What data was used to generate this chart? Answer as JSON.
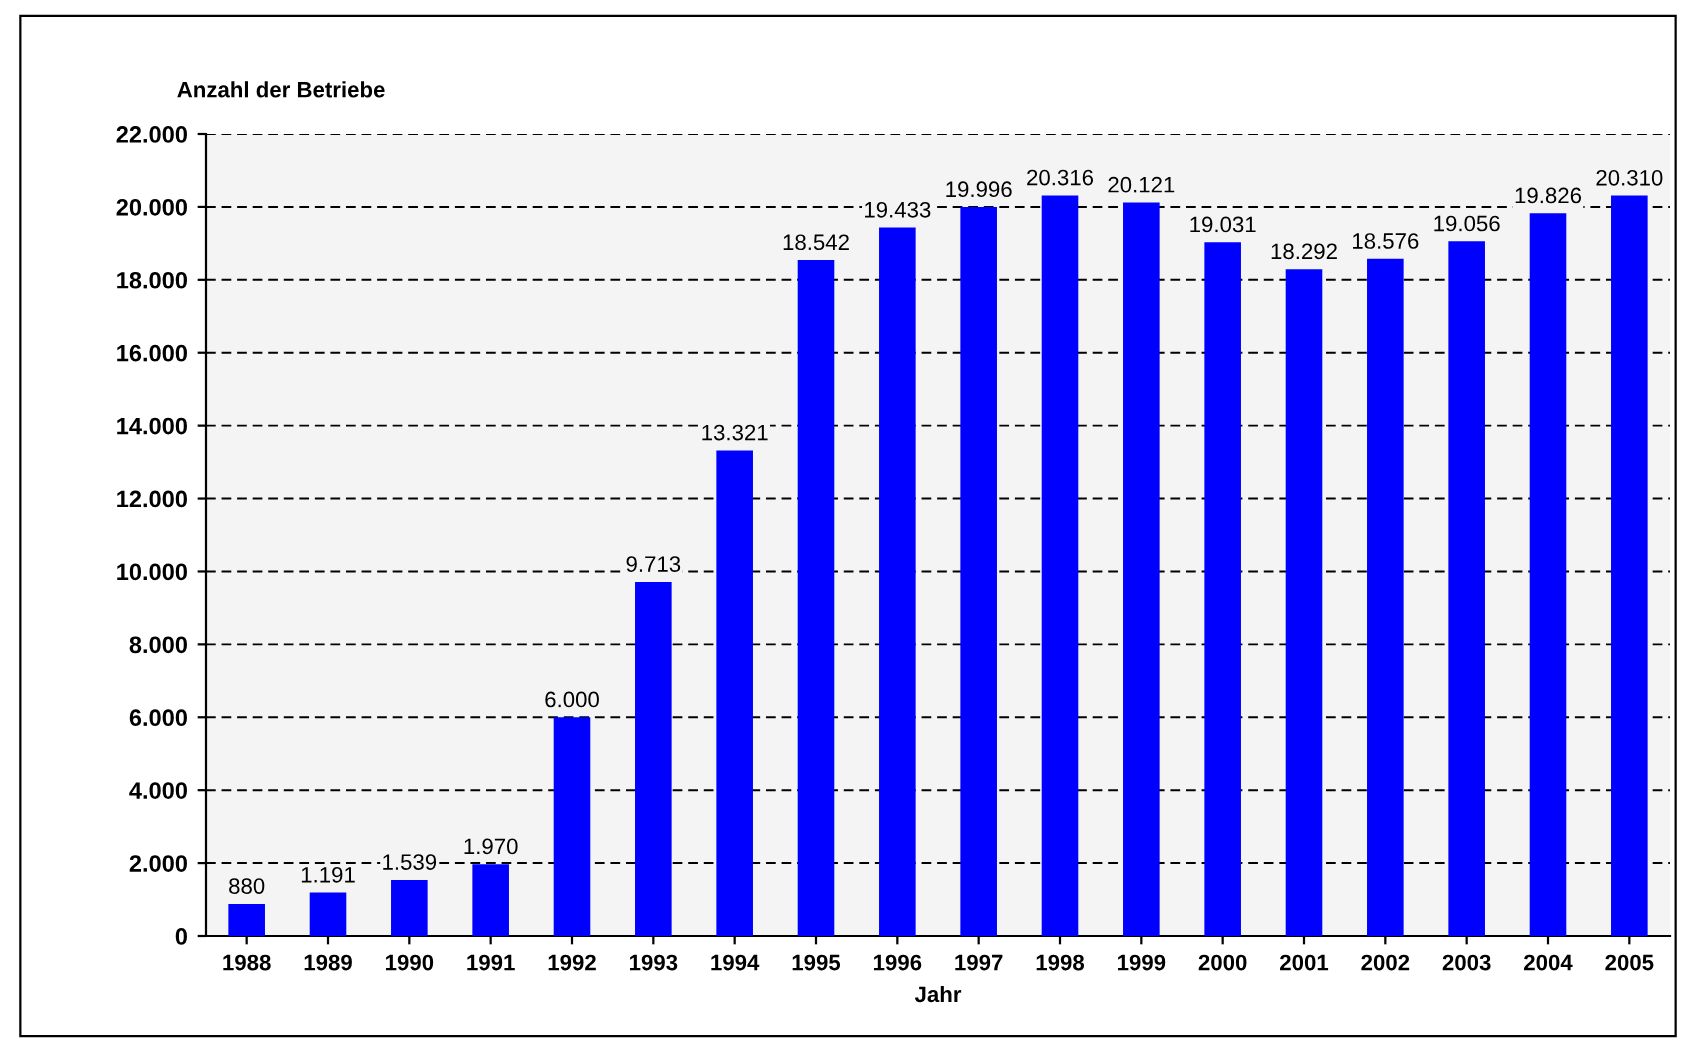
{
  "chart_data": {
    "type": "bar",
    "ylabel": "Anzahl der Betriebe",
    "xlabel": "Jahr",
    "categories": [
      "1988",
      "1989",
      "1990",
      "1991",
      "1992",
      "1993",
      "1994",
      "1995",
      "1996",
      "1997",
      "1998",
      "1999",
      "2000",
      "2001",
      "2002",
      "2003",
      "2004",
      "2005"
    ],
    "values": [
      880,
      1191,
      1539,
      1970,
      6000,
      9713,
      13321,
      18542,
      19433,
      19996,
      20316,
      20121,
      19031,
      18292,
      18576,
      19056,
      19826,
      20310
    ],
    "value_labels": [
      "880",
      "1.191",
      "1.539",
      "1.970",
      "6.000",
      "9.713",
      "13.321",
      "18.542",
      "19.433",
      "19.996",
      "20.316",
      "20.121",
      "19.031",
      "18.292",
      "18.576",
      "19.056",
      "19.826",
      "20.310"
    ],
    "color": "#0000ff",
    "ylim": [
      0,
      22000
    ],
    "yticks": [
      0,
      {
        "value": 2000,
        "label": "2.000"
      },
      {
        "value": 4000,
        "label": "4.000"
      },
      {
        "value": 6000,
        "label": "6.000"
      },
      {
        "value": 8000,
        "label": "8.000"
      },
      {
        "value": 10000,
        "label": "10.000"
      },
      {
        "value": 12000,
        "label": "12.000"
      },
      {
        "value": 14000,
        "label": "14.000"
      },
      {
        "value": 16000,
        "label": "16.000"
      },
      {
        "value": 18000,
        "label": "18.000"
      },
      {
        "value": 20000,
        "label": "20.000"
      },
      {
        "value": 22000,
        "label": "22.000"
      }
    ],
    "grid": "y",
    "line_style": "dashed",
    "legend": false
  }
}
